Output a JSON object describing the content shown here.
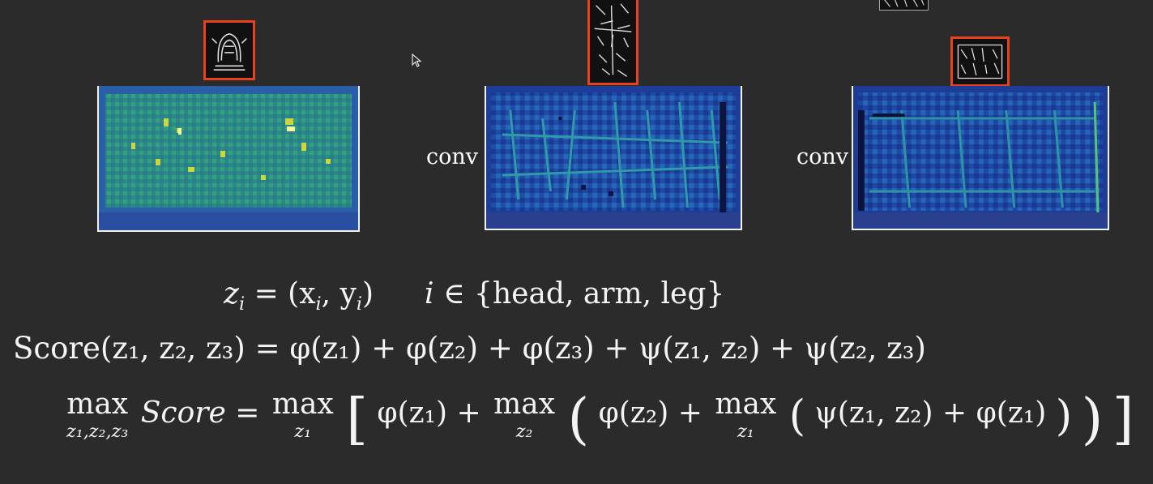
{
  "labels": {
    "conv_a": "conv",
    "conv_b": "conv"
  },
  "equations": {
    "line1": {
      "lhs": "z",
      "lhs_sub": "i",
      "eq": "= (x",
      "xsub": "i",
      "comma": ", y",
      "ysub": "i",
      "close": ")",
      "cond_var": "i",
      "cond_in": "∈ {head, arm, leg}"
    },
    "line2": "Score(z₁, z₂, z₃) = φ(z₁) + φ(z₂) + φ(z₃) + ψ(z₁, z₂) + ψ(z₂, z₃)",
    "line3": {
      "max_all": "max",
      "max_all_lim": "z₁,z₂,z₃",
      "score": "Score =",
      "max1": "max",
      "max1_lim": "z₁",
      "part1": "φ(z₁) +",
      "max2": "max",
      "max2_lim": "z₂",
      "part2": "φ(z₂) +",
      "max3": "max",
      "max3_lim": "z₁",
      "part3": "ψ(z₁, z₂) + φ(z₁)"
    }
  },
  "colors": {
    "frame": "#e8421c",
    "background": "#2b2b2b",
    "heat_low": "#1f3d9a",
    "heat_mid": "#2fae6a",
    "heat_high": "#e6e640"
  },
  "icons": {
    "cursor": "mouse-pointer-icon"
  }
}
